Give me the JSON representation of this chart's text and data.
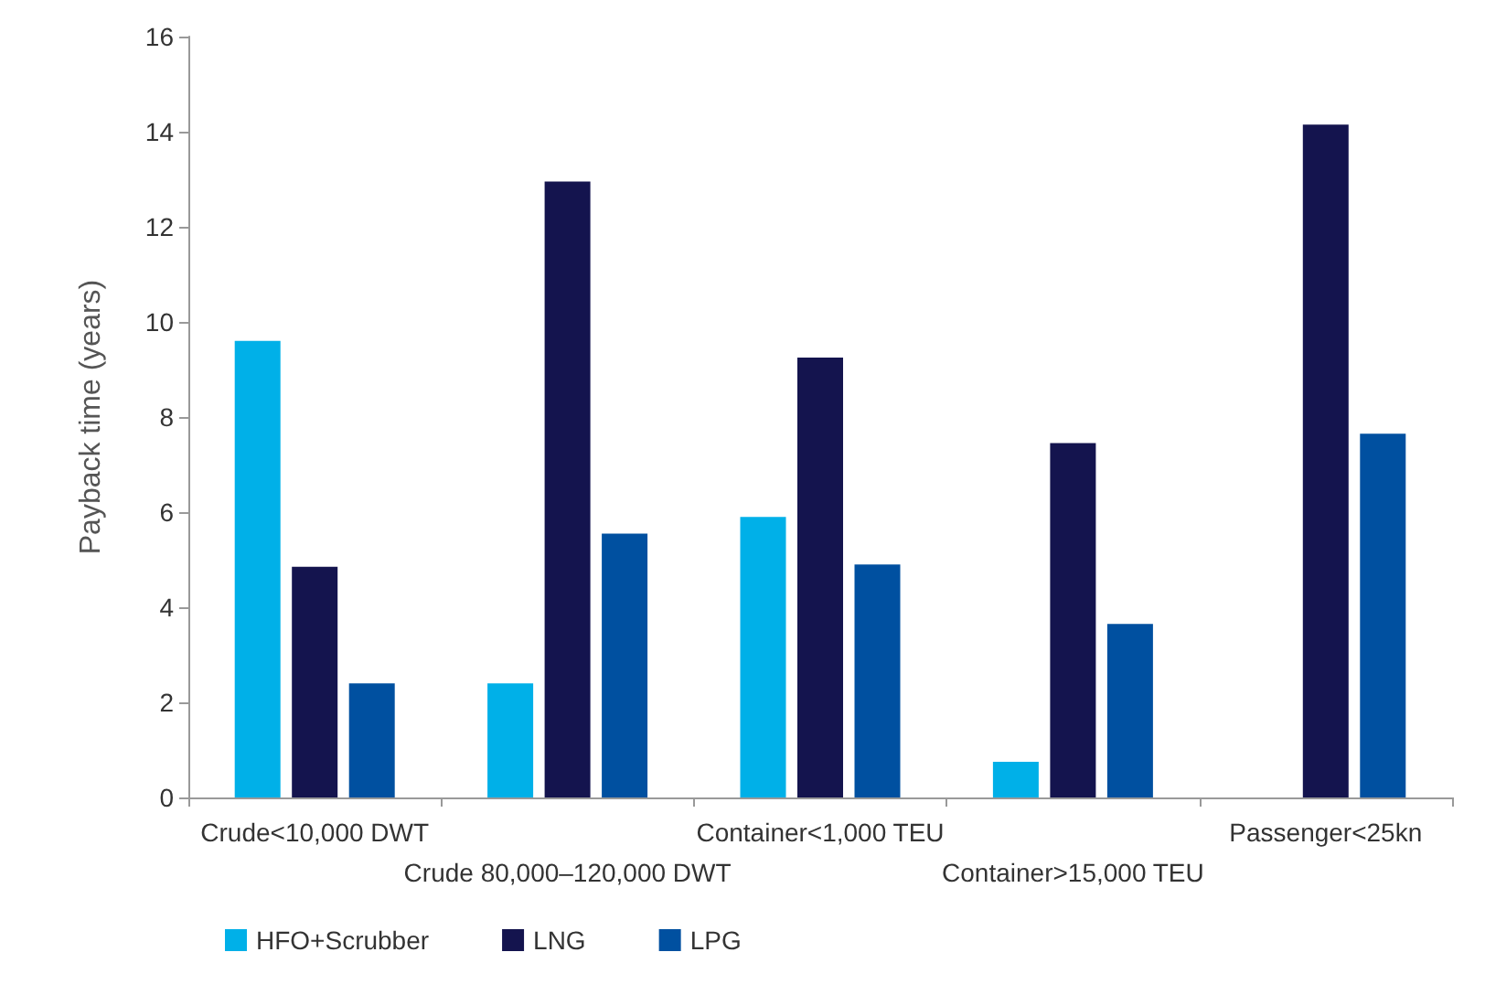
{
  "chart_data": {
    "type": "bar",
    "ylabel": "Payback time (years)",
    "categories": [
      "Crude<10,000 DWT",
      "Crude 80,000–120,000 DWT",
      "Container<1,000 TEU",
      "Container>15,000 TEU",
      "Passenger<25kn"
    ],
    "series": [
      {
        "name": "HFO+Scrubber",
        "color": "#00b0e8",
        "values": [
          9.6,
          2.4,
          5.9,
          0.75,
          null
        ]
      },
      {
        "name": "LNG",
        "color": "#14144e",
        "values": [
          4.85,
          12.95,
          9.25,
          7.45,
          14.15
        ]
      },
      {
        "name": "LPG",
        "color": "#0050a0",
        "values": [
          2.4,
          5.55,
          4.9,
          3.65,
          7.65
        ]
      }
    ],
    "ylim": [
      0,
      16
    ],
    "yticks": [
      0,
      2,
      4,
      6,
      8,
      10,
      12,
      14,
      16
    ],
    "grid": false,
    "legend": "bottom left"
  }
}
